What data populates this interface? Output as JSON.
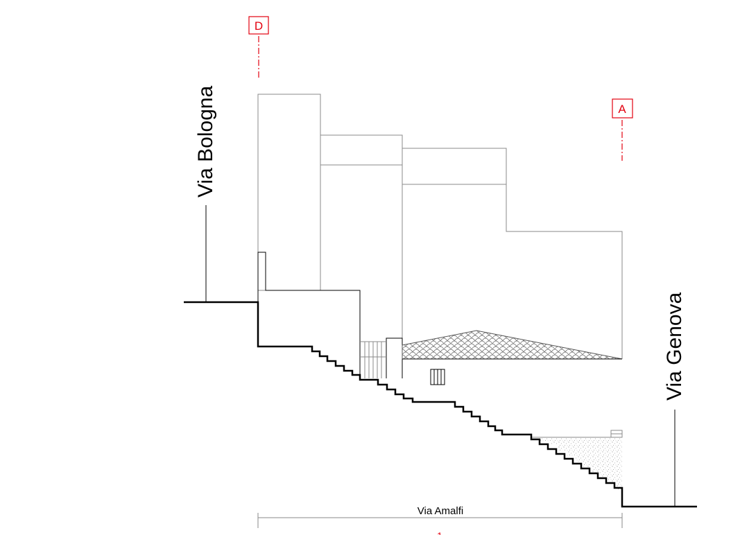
{
  "streets": {
    "north_west": "Via Bologna",
    "south_east": "Via Genova",
    "bottom": "Via Amalfi"
  },
  "section_markers": [
    {
      "id": "marker-d",
      "label": "D"
    },
    {
      "id": "marker-a",
      "label": "A"
    }
  ],
  "dimension": {
    "label": "Via Amalfi",
    "sub_label": "1"
  },
  "colors": {
    "marker": "#e3000f",
    "outline": "#000000",
    "building_lines": "#8a8a8a",
    "roof_hatch": "#6d6d6d",
    "soil_stipple": "#9a9a9a"
  }
}
